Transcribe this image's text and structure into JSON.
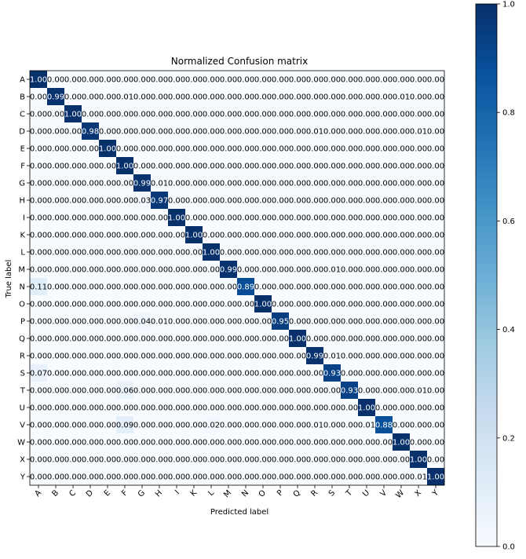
{
  "chart_data": {
    "type": "heatmap",
    "title": "Normalized Confusion matrix",
    "xlabel": "Predicted label",
    "ylabel": "True label",
    "labels": [
      "A",
      "B",
      "C",
      "D",
      "E",
      "F",
      "G",
      "H",
      "I",
      "K",
      "L",
      "M",
      "N",
      "O",
      "P",
      "Q",
      "R",
      "S",
      "T",
      "U",
      "V",
      "W",
      "X",
      "Y"
    ],
    "colormap": "Blues",
    "color_low": "#f7fbff",
    "color_high": "#08306b",
    "text_dark": "#000000",
    "text_light": "#ffffff",
    "value_range": [
      0.0,
      1.0
    ],
    "value_format": "2 decimals",
    "colorbar_ticks": [
      "0.0",
      "0.2",
      "0.4",
      "0.6",
      "0.8",
      "1.0"
    ],
    "colorbar_tick_values": [
      0.0,
      0.2,
      0.4,
      0.6,
      0.8,
      1.0
    ],
    "xtick_rotation_deg": 45,
    "matrix": [
      [
        1.0,
        0,
        0,
        0,
        0,
        0,
        0,
        0,
        0,
        0,
        0,
        0,
        0,
        0,
        0,
        0,
        0,
        0,
        0,
        0,
        0,
        0,
        0,
        0
      ],
      [
        0,
        0.99,
        0,
        0,
        0,
        0.01,
        0,
        0,
        0,
        0,
        0,
        0,
        0,
        0,
        0,
        0,
        0,
        0,
        0,
        0,
        0,
        0.01,
        0,
        0
      ],
      [
        0,
        0,
        1.0,
        0,
        0,
        0,
        0,
        0,
        0,
        0,
        0,
        0,
        0,
        0,
        0,
        0,
        0,
        0,
        0,
        0,
        0,
        0,
        0,
        0
      ],
      [
        0,
        0,
        0,
        0.98,
        0,
        0,
        0,
        0,
        0,
        0,
        0,
        0,
        0,
        0,
        0,
        0,
        0.01,
        0,
        0,
        0,
        0,
        0,
        0.01,
        0
      ],
      [
        0,
        0,
        0,
        0,
        1.0,
        0,
        0,
        0,
        0,
        0,
        0,
        0,
        0,
        0,
        0,
        0,
        0,
        0,
        0,
        0,
        0,
        0,
        0,
        0
      ],
      [
        0,
        0,
        0,
        0,
        0,
        1.0,
        0,
        0,
        0,
        0,
        0,
        0,
        0,
        0,
        0,
        0,
        0,
        0,
        0,
        0,
        0,
        0,
        0,
        0
      ],
      [
        0,
        0,
        0,
        0,
        0,
        0,
        0.99,
        0.01,
        0,
        0,
        0,
        0,
        0,
        0,
        0,
        0,
        0,
        0,
        0,
        0,
        0,
        0,
        0,
        0
      ],
      [
        0,
        0,
        0,
        0,
        0,
        0,
        0.03,
        0.97,
        0,
        0,
        0,
        0,
        0,
        0,
        0,
        0,
        0,
        0,
        0,
        0,
        0,
        0,
        0,
        0
      ],
      [
        0,
        0,
        0,
        0,
        0,
        0,
        0,
        0,
        1.0,
        0,
        0,
        0,
        0,
        0,
        0,
        0,
        0,
        0,
        0,
        0,
        0,
        0,
        0,
        0
      ],
      [
        0,
        0,
        0,
        0,
        0,
        0,
        0,
        0,
        0,
        1.0,
        0,
        0,
        0,
        0,
        0,
        0,
        0,
        0,
        0,
        0,
        0,
        0,
        0,
        0
      ],
      [
        0,
        0,
        0,
        0,
        0,
        0,
        0,
        0,
        0,
        0,
        1.0,
        0,
        0,
        0,
        0,
        0,
        0,
        0,
        0,
        0,
        0,
        0,
        0,
        0
      ],
      [
        0,
        0,
        0,
        0,
        0,
        0,
        0,
        0,
        0,
        0,
        0,
        0.99,
        0,
        0,
        0,
        0,
        0,
        0.01,
        0,
        0,
        0,
        0,
        0,
        0
      ],
      [
        0.11,
        0,
        0,
        0,
        0,
        0,
        0,
        0,
        0,
        0,
        0,
        0,
        0.89,
        0,
        0,
        0,
        0,
        0,
        0,
        0,
        0,
        0,
        0,
        0
      ],
      [
        0,
        0,
        0,
        0,
        0,
        0,
        0,
        0,
        0,
        0,
        0,
        0,
        0,
        1.0,
        0,
        0,
        0,
        0,
        0,
        0,
        0,
        0,
        0,
        0
      ],
      [
        0,
        0,
        0,
        0,
        0,
        0,
        0.04,
        0.01,
        0,
        0,
        0,
        0,
        0,
        0,
        0.95,
        0,
        0,
        0,
        0,
        0,
        0,
        0,
        0,
        0
      ],
      [
        0,
        0,
        0,
        0,
        0,
        0,
        0,
        0,
        0,
        0,
        0,
        0,
        0,
        0,
        0,
        1.0,
        0,
        0,
        0,
        0,
        0,
        0,
        0,
        0
      ],
      [
        0,
        0,
        0,
        0,
        0,
        0,
        0,
        0,
        0,
        0,
        0,
        0,
        0,
        0,
        0,
        0,
        0.99,
        0.01,
        0,
        0,
        0,
        0,
        0,
        0
      ],
      [
        0.07,
        0,
        0,
        0,
        0,
        0,
        0,
        0,
        0,
        0,
        0,
        0,
        0,
        0,
        0,
        0,
        0,
        0.93,
        0,
        0,
        0,
        0,
        0,
        0
      ],
      [
        0,
        0,
        0,
        0,
        0,
        0.06,
        0,
        0,
        0,
        0,
        0,
        0,
        0,
        0,
        0,
        0,
        0,
        0,
        0.93,
        0,
        0,
        0,
        0.01,
        0
      ],
      [
        0,
        0,
        0,
        0,
        0,
        0,
        0,
        0,
        0,
        0,
        0,
        0,
        0,
        0,
        0,
        0,
        0,
        0,
        0,
        1.0,
        0,
        0,
        0,
        0
      ],
      [
        0,
        0,
        0,
        0,
        0,
        0.09,
        0,
        0,
        0,
        0,
        0.02,
        0,
        0,
        0,
        0,
        0,
        0.01,
        0,
        0,
        0.01,
        0.88,
        0,
        0,
        0
      ],
      [
        0,
        0,
        0,
        0,
        0,
        0,
        0,
        0,
        0,
        0,
        0,
        0,
        0,
        0,
        0,
        0,
        0,
        0,
        0,
        0,
        0,
        1.0,
        0,
        0
      ],
      [
        0,
        0,
        0,
        0,
        0,
        0,
        0,
        0,
        0,
        0,
        0,
        0,
        0,
        0,
        0,
        0,
        0,
        0,
        0,
        0,
        0,
        0,
        1.0,
        0
      ],
      [
        0,
        0,
        0,
        0,
        0,
        0,
        0,
        0,
        0,
        0,
        0,
        0,
        0,
        0,
        0,
        0,
        0,
        0,
        0,
        0,
        0,
        0,
        0.01,
        1.0
      ]
    ]
  }
}
